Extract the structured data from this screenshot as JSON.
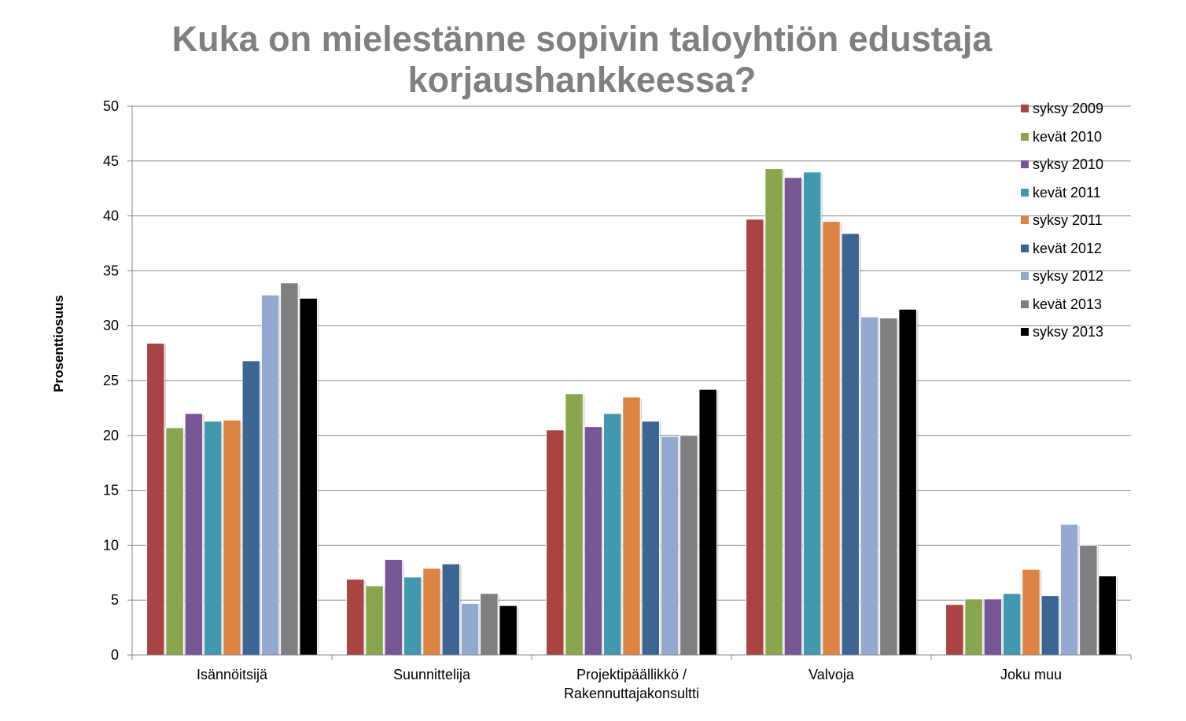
{
  "chart_data": {
    "type": "bar",
    "title_lines": [
      "Kuka on mielestänne sopivin taloyhtiön edustaja",
      "korjaushankkeessa?"
    ],
    "xlabel": "",
    "ylabel": "Prosenttiosuus",
    "ylim": [
      0,
      50
    ],
    "yticks": [
      0,
      5,
      10,
      15,
      20,
      25,
      30,
      35,
      40,
      45,
      50
    ],
    "grid": true,
    "legend_position": "top-right",
    "categories": [
      [
        "Isännöitsijä"
      ],
      [
        "Suunnittelija"
      ],
      [
        "Projektipäällikkö /",
        "Rakennuttajakonsultti"
      ],
      [
        "Valvoja"
      ],
      [
        "Joku muu"
      ]
    ],
    "series": [
      {
        "name": "syksy 2009",
        "color": "#a94442",
        "values": [
          28.4,
          6.9,
          20.5,
          39.7,
          4.6
        ]
      },
      {
        "name": "kevät 2010",
        "color": "#89a54e",
        "values": [
          20.7,
          6.3,
          23.8,
          44.3,
          5.1
        ]
      },
      {
        "name": "syksy 2010",
        "color": "#765694",
        "values": [
          22.0,
          8.7,
          20.8,
          43.5,
          5.1
        ]
      },
      {
        "name": "kevät 2011",
        "color": "#4198af",
        "values": [
          21.3,
          7.1,
          22.0,
          44.0,
          5.6
        ]
      },
      {
        "name": "syksy 2011",
        "color": "#dd8444",
        "values": [
          21.4,
          7.9,
          23.5,
          39.5,
          7.8
        ]
      },
      {
        "name": "kevät 2012",
        "color": "#3d6594",
        "values": [
          26.8,
          8.3,
          21.3,
          38.4,
          5.4
        ]
      },
      {
        "name": "syksy 2012",
        "color": "#93a9d0",
        "values": [
          32.8,
          4.7,
          19.9,
          30.8,
          11.9
        ]
      },
      {
        "name": "kevät 2013",
        "color": "#7f7f7f",
        "values": [
          33.9,
          5.6,
          20.0,
          30.7,
          10.0
        ]
      },
      {
        "name": "syksy 2013",
        "color": "#000000",
        "values": [
          32.5,
          4.5,
          24.2,
          31.5,
          7.2
        ]
      }
    ]
  }
}
